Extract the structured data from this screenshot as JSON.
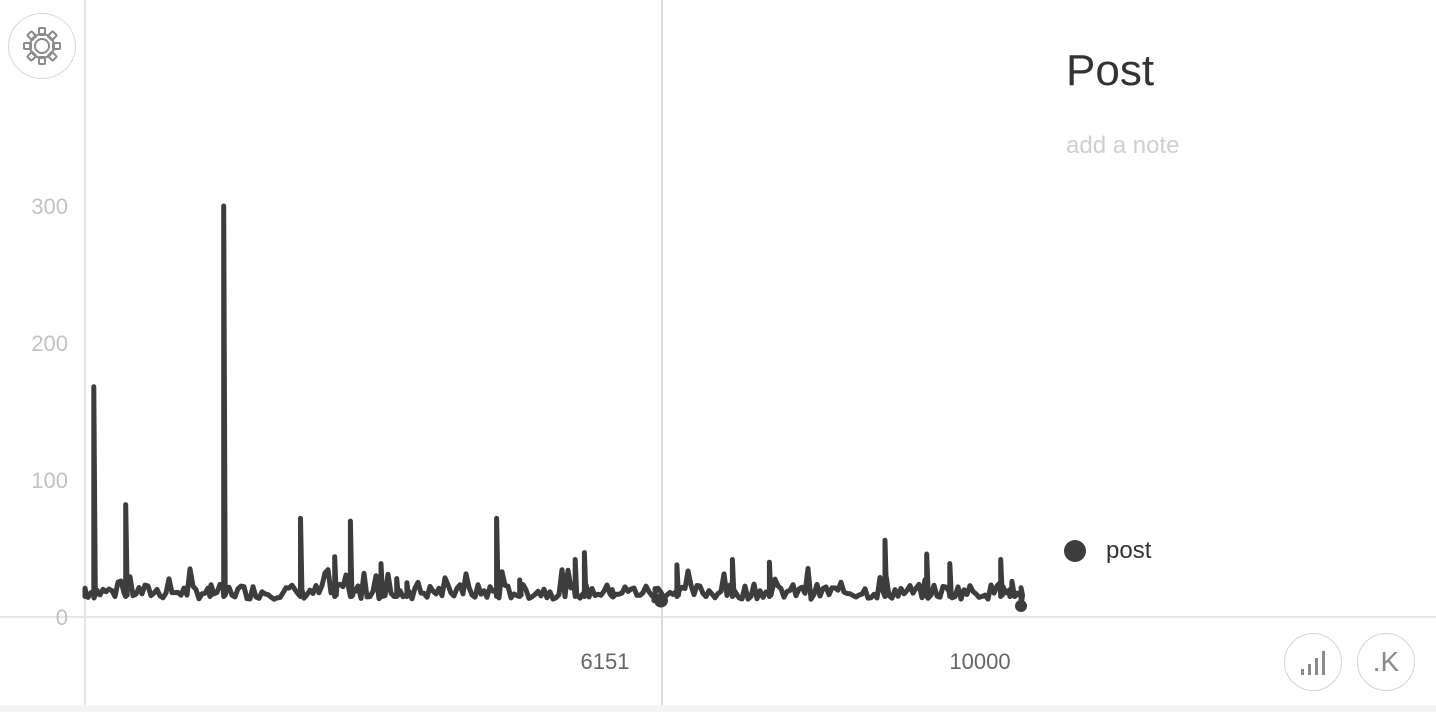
{
  "chart_data": {
    "type": "line",
    "title": "Post",
    "series": [
      {
        "name": "post",
        "color": "#3d3d3d",
        "x": [
          0,
          95,
          440,
          1350,
          1500,
          2330,
          2700,
          2870,
          2880,
          3200,
          3370,
          3480,
          4450,
          4700,
          5300,
          5400,
          5700,
          6151,
          6400,
          7000,
          7400,
          8650,
          9100,
          9350,
          9900,
          10000,
          10050,
          10120
        ],
        "y": [
          21,
          168,
          82,
          18,
          300,
          72,
          44,
          70,
          15,
          39,
          28,
          25,
          72,
          27,
          42,
          47,
          20,
          12,
          38,
          42,
          40,
          56,
          46,
          39,
          42,
          20,
          18,
          8
        ]
      }
    ],
    "noise_band": [
      13,
      24
    ],
    "xlim": [
      0,
      10800
    ],
    "ylim": [
      0,
      400
    ],
    "yticks": [
      "0",
      "100",
      "200",
      "300"
    ],
    "xticks": [
      {
        "value": 6151,
        "label": "6151"
      },
      {
        "value": 10000,
        "label": "10000"
      }
    ],
    "cursor_x": 6151,
    "cursor_y": 12,
    "end_x": 10120,
    "end_y": 8,
    "grid": false,
    "legend": "right"
  },
  "panel": {
    "title": "Post",
    "note_placeholder": "add a note"
  },
  "legend": {
    "label": "post",
    "color": "#3d3d3d"
  },
  "buttons": {
    "format_label": ".K",
    "settings_icon": "gear-icon",
    "bars_icon": "bar-chart-icon"
  }
}
